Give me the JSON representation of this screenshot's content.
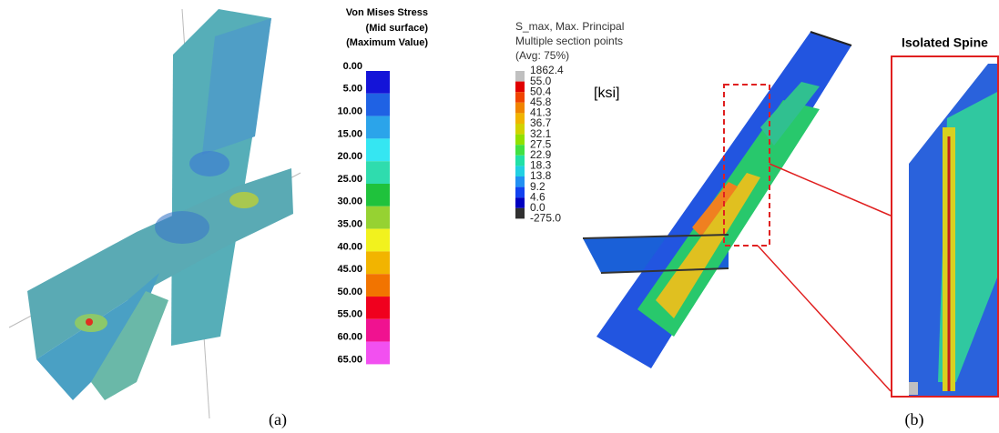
{
  "panel_a": {
    "legend": {
      "title": [
        "Von Mises Stress",
        "(Mid surface)",
        "(Maximum Value)"
      ],
      "labels": [
        "0.00",
        "5.00",
        "10.00",
        "15.00",
        "20.00",
        "25.00",
        "30.00",
        "35.00",
        "40.00",
        "45.00",
        "50.00",
        "55.00",
        "60.00",
        "65.00"
      ],
      "colors": [
        "#1414d8",
        "#1f62e4",
        "#2ba4ea",
        "#35e6f2",
        "#2fdcae",
        "#1fc23c",
        "#96d232",
        "#f2f21e",
        "#f2b400",
        "#f27400",
        "#f0001e",
        "#f01290",
        "#f250f0"
      ]
    },
    "caption": "(a)"
  },
  "panel_b": {
    "legend": {
      "title": [
        "S_max, Max. Principal",
        "Multiple section points",
        "(Avg: 75%)"
      ],
      "unit": "[ksi]",
      "labels": [
        "1862.4",
        "55.0",
        "50.4",
        "45.8",
        "41.3",
        "36.7",
        "32.1",
        "27.5",
        "22.9",
        "18.3",
        "13.8",
        "9.2",
        "4.6",
        "0.0",
        "-275.0"
      ],
      "colors": [
        "#c0c0c0",
        "#e00000",
        "#f04400",
        "#f08400",
        "#f0b400",
        "#d2d200",
        "#92e000",
        "#42e042",
        "#22e0a6",
        "#22d0e2",
        "#2290f2",
        "#1242f0",
        "#0000c0",
        "#303030"
      ]
    },
    "inset_title": "Isolated Spine",
    "caption": "(b)"
  }
}
